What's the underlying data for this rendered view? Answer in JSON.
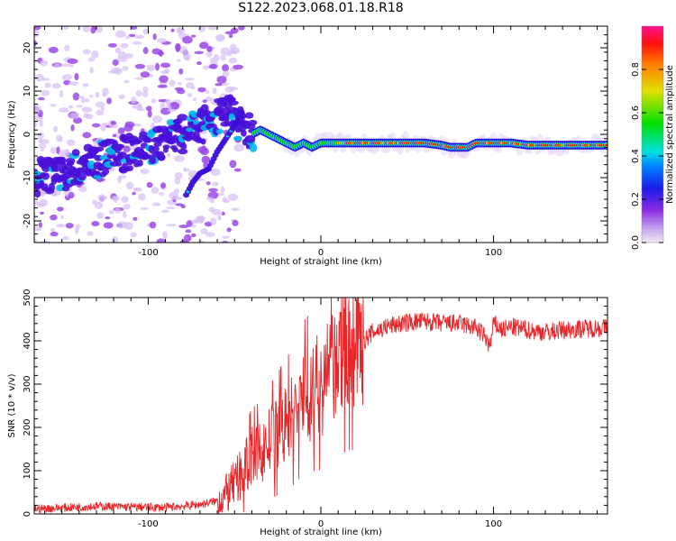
{
  "page": {
    "title": "S122.2023.068.01.18.R18"
  },
  "chart_data": [
    {
      "type": "heatmap",
      "title": "",
      "xlabel": "Height of straight line (km)",
      "ylabel": "Frequency (Hz)",
      "xlim": [
        -166,
        166
      ],
      "ylim": [
        -25,
        25
      ],
      "xticks": [
        -100,
        0,
        100
      ],
      "yticks": [
        -20,
        -10,
        0,
        10,
        20
      ],
      "colorbar": {
        "label": "Normalized spectral amplitude",
        "range": [
          0,
          1
        ],
        "ticks": [
          "0.0",
          "0.2",
          "0.4",
          "0.6",
          "0.8"
        ]
      },
      "ridge": {
        "x": [
          -165,
          -150,
          -140,
          -130,
          -120,
          -110,
          -100,
          -90,
          -80,
          -70,
          -60,
          -55,
          -50,
          -45,
          -40,
          -35,
          -30,
          -25,
          -20,
          -15,
          -10,
          -5,
          0,
          10,
          20,
          40,
          60,
          70,
          75,
          80,
          85,
          90,
          100,
          110,
          120,
          140,
          160,
          166
        ],
        "y": [
          -10,
          -9,
          -7,
          -6,
          -5,
          -4,
          -3,
          -1,
          0,
          2,
          4,
          5,
          4,
          1,
          0,
          1,
          0,
          -1,
          -2,
          -3,
          -2,
          -3,
          -2,
          -2,
          -2,
          -2,
          -2,
          -2.5,
          -3,
          -3,
          -3,
          -2,
          -2,
          -2,
          -2.5,
          -2.5,
          -2.5,
          -2.5
        ]
      },
      "branch": {
        "x": [
          -78,
          -74,
          -70,
          -65,
          -60,
          -55,
          -50,
          -46
        ],
        "y": [
          -14,
          -11,
          -9,
          -8,
          -4,
          -1,
          2,
          5
        ]
      }
    },
    {
      "type": "line",
      "title": "",
      "xlabel": "Height of straight line (km)",
      "ylabel": "SNR (10 * v/v)",
      "xlim": [
        -166,
        166
      ],
      "ylim": [
        0,
        500
      ],
      "xticks": [
        -100,
        0,
        100
      ],
      "yticks": [
        0,
        100,
        200,
        300,
        400,
        500
      ],
      "series": [
        {
          "color": "#e8262a",
          "x": [
            -166,
            -150,
            -130,
            -110,
            -90,
            -80,
            -70,
            -60,
            -55,
            -50,
            -45,
            -40,
            -35,
            -30,
            -25,
            -20,
            -15,
            -10,
            -5,
            0,
            5,
            10,
            15,
            20,
            25,
            30,
            40,
            50,
            60,
            70,
            80,
            90,
            95,
            98,
            100,
            105,
            110,
            120,
            130,
            140,
            150,
            160,
            166
          ],
          "y": [
            12,
            14,
            18,
            16,
            15,
            18,
            22,
            30,
            45,
            70,
            100,
            135,
            140,
            165,
            185,
            205,
            235,
            270,
            285,
            300,
            320,
            345,
            380,
            390,
            400,
            420,
            435,
            442,
            445,
            440,
            440,
            430,
            410,
            385,
            440,
            425,
            432,
            425,
            420,
            425,
            428,
            430,
            430
          ]
        }
      ]
    }
  ]
}
